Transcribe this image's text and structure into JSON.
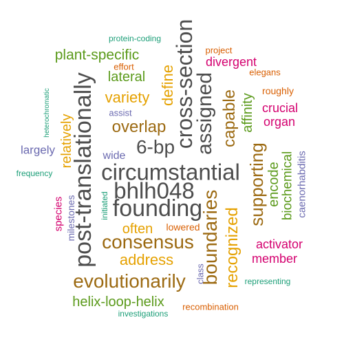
{
  "palette": {
    "dark_gray": "#4d4d4d",
    "brown": "#9c6a12",
    "olive_green": "#5b9a1b",
    "gold": "#e5a100",
    "magenta": "#d4006f",
    "purple": "#6b6ab0",
    "orange": "#d95f02",
    "teal": "#1b9e77"
  },
  "words": [
    "circumstantial",
    "post-translationally",
    "cross-section",
    "founding",
    "bhlh048",
    "boundaries",
    "evolutionarily",
    "consensus",
    "assigned",
    "supporting",
    "6-bp",
    "recognized",
    "overlap",
    "capable",
    "address",
    "often",
    "variety",
    "plant-specific",
    "helix-loop-helix",
    "encode",
    "define",
    "biochemical",
    "relatively",
    "affinity",
    "member",
    "activator",
    "lateral",
    "divergent",
    "crucial",
    "organ",
    "caenorhabditis",
    "species",
    "largely",
    "wide",
    "lowered",
    "milestones",
    "class",
    "recombination",
    "roughly",
    "elegans",
    "effort",
    "assist",
    "project",
    "protein-coding",
    "investigations",
    "initiated",
    "representing",
    "frequency",
    "heterochromatic"
  ]
}
